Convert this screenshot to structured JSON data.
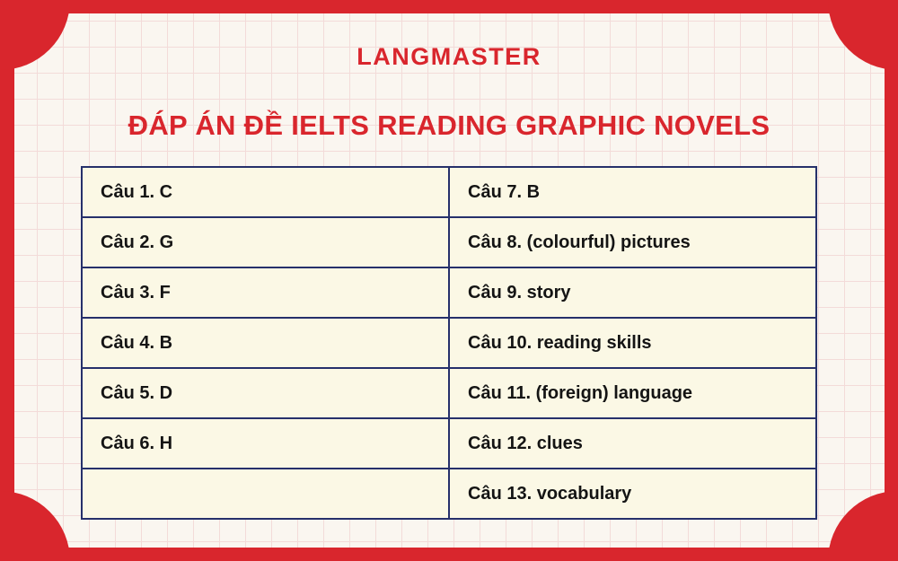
{
  "page": {
    "brand": "LANGMASTER",
    "title": "ĐÁP ÁN ĐỀ IELTS READING GRAPHIC NOVELS"
  },
  "colors": {
    "accent_red": "#d9262d",
    "table_border_navy": "#26306b",
    "cell_background": "#fbf8e5",
    "paper_background": "#faf6f0",
    "grid_line": "#f3dbd9",
    "text": "#141414"
  },
  "answers_table": {
    "rows": [
      {
        "left": "Câu 1. C",
        "right": "Câu 7. B"
      },
      {
        "left": "Câu 2. G",
        "right": "Câu 8. (colourful) pictures"
      },
      {
        "left": "Câu 3. F",
        "right": "Câu 9. story"
      },
      {
        "left": "Câu 4. B",
        "right": "Câu 10. reading skills"
      },
      {
        "left": "Câu 5. D",
        "right": "Câu 11. (foreign) language"
      },
      {
        "left": "Câu 6. H",
        "right": "Câu 12. clues"
      },
      {
        "left": "",
        "right": "Câu 13. vocabulary"
      }
    ]
  }
}
